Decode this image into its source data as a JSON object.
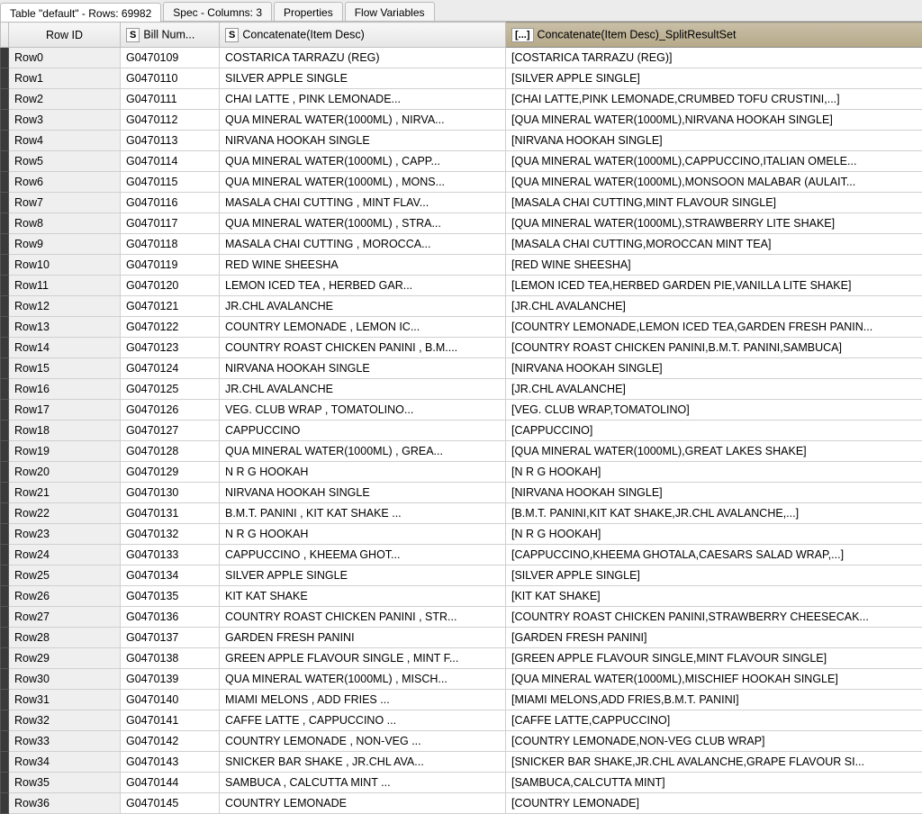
{
  "tabs": {
    "main": "Table \"default\" - Rows: 69982",
    "spec": "Spec - Columns: 3",
    "props": "Properties",
    "flow": "Flow Variables"
  },
  "headers": {
    "rowid": "Row ID",
    "bill": {
      "type": "S",
      "label": "Bill Num..."
    },
    "desc": {
      "type": "S",
      "label": "Concatenate(Item Desc)"
    },
    "split": {
      "type": "[...]",
      "label": "Concatenate(Item Desc)_SplitResultSet"
    }
  },
  "rows": [
    {
      "id": "Row0",
      "bill": "G0470109",
      "desc": "COSTARICA TARRAZU (REG)",
      "split": "[COSTARICA TARRAZU (REG)]"
    },
    {
      "id": "Row1",
      "bill": "G0470110",
      "desc": "SILVER APPLE SINGLE",
      "split": "[SILVER APPLE SINGLE]"
    },
    {
      "id": "Row2",
      "bill": "G0470111",
      "desc": "CHAI LATTE               , PINK LEMONADE...",
      "split": "[CHAI LATTE,PINK LEMONADE,CRUMBED TOFU CRUSTINI,...]"
    },
    {
      "id": "Row3",
      "bill": "G0470112",
      "desc": "QUA  MINERAL WATER(1000ML)    , NIRVA...",
      "split": "[QUA  MINERAL WATER(1000ML),NIRVANA HOOKAH SINGLE]"
    },
    {
      "id": "Row4",
      "bill": "G0470113",
      "desc": "NIRVANA HOOKAH SINGLE",
      "split": "[NIRVANA HOOKAH SINGLE]"
    },
    {
      "id": "Row5",
      "bill": "G0470114",
      "desc": "QUA  MINERAL WATER(1000ML)    , CAPP...",
      "split": "[QUA  MINERAL WATER(1000ML),CAPPUCCINO,ITALIAN OMELE..."
    },
    {
      "id": "Row6",
      "bill": "G0470115",
      "desc": "QUA  MINERAL WATER(1000ML)    , MONS...",
      "split": "[QUA  MINERAL WATER(1000ML),MONSOON MALABAR (AULAIT..."
    },
    {
      "id": "Row7",
      "bill": "G0470116",
      "desc": "MASALA CHAI CUTTING       , MINT FLAV...",
      "split": "[MASALA CHAI CUTTING,MINT FLAVOUR SINGLE]"
    },
    {
      "id": "Row8",
      "bill": "G0470117",
      "desc": "QUA  MINERAL WATER(1000ML)    , STRA...",
      "split": "[QUA  MINERAL WATER(1000ML),STRAWBERRY LITE SHAKE]"
    },
    {
      "id": "Row9",
      "bill": "G0470118",
      "desc": "MASALA CHAI CUTTING       , MOROCCA...",
      "split": "[MASALA CHAI CUTTING,MOROCCAN MINT TEA]"
    },
    {
      "id": "Row10",
      "bill": "G0470119",
      "desc": "RED WINE SHEESHA",
      "split": "[RED WINE SHEESHA]"
    },
    {
      "id": "Row11",
      "bill": "G0470120",
      "desc": "LEMON ICED TEA           , HERBED GAR...",
      "split": "[LEMON ICED TEA,HERBED GARDEN PIE,VANILLA LITE SHAKE]"
    },
    {
      "id": "Row12",
      "bill": "G0470121",
      "desc": "JR.CHL AVALANCHE",
      "split": "[JR.CHL AVALANCHE]"
    },
    {
      "id": "Row13",
      "bill": "G0470122",
      "desc": "COUNTRY LEMONADE         , LEMON IC...",
      "split": "[COUNTRY LEMONADE,LEMON ICED TEA,GARDEN FRESH PANIN..."
    },
    {
      "id": "Row14",
      "bill": "G0470123",
      "desc": "COUNTRY ROAST CHICKEN PANINI  , B.M....",
      "split": "[COUNTRY ROAST CHICKEN PANINI,B.M.T. PANINI,SAMBUCA]"
    },
    {
      "id": "Row15",
      "bill": "G0470124",
      "desc": "NIRVANA HOOKAH SINGLE",
      "split": "[NIRVANA HOOKAH SINGLE]"
    },
    {
      "id": "Row16",
      "bill": "G0470125",
      "desc": "JR.CHL AVALANCHE",
      "split": "[JR.CHL AVALANCHE]"
    },
    {
      "id": "Row17",
      "bill": "G0470126",
      "desc": "VEG. CLUB WRAP           , TOMATOLINO...",
      "split": "[VEG. CLUB WRAP,TOMATOLINO]"
    },
    {
      "id": "Row18",
      "bill": "G0470127",
      "desc": "CAPPUCCINO",
      "split": "[CAPPUCCINO]"
    },
    {
      "id": "Row19",
      "bill": "G0470128",
      "desc": "QUA  MINERAL WATER(1000ML)    , GREA...",
      "split": "[QUA  MINERAL WATER(1000ML),GREAT LAKES SHAKE]"
    },
    {
      "id": "Row20",
      "bill": "G0470129",
      "desc": "N R G  HOOKAH",
      "split": "[N R G  HOOKAH]"
    },
    {
      "id": "Row21",
      "bill": "G0470130",
      "desc": "NIRVANA HOOKAH SINGLE",
      "split": "[NIRVANA HOOKAH SINGLE]"
    },
    {
      "id": "Row22",
      "bill": "G0470131",
      "desc": "B.M.T. PANINI            , KIT KAT SHAKE  ...",
      "split": "[B.M.T. PANINI,KIT KAT SHAKE,JR.CHL AVALANCHE,...]"
    },
    {
      "id": "Row23",
      "bill": "G0470132",
      "desc": "N R G  HOOKAH",
      "split": "[N R G  HOOKAH]"
    },
    {
      "id": "Row24",
      "bill": "G0470133",
      "desc": "CAPPUCCINO               , KHEEMA GHOT...",
      "split": "[CAPPUCCINO,KHEEMA GHOTALA,CAESARS SALAD WRAP,...]"
    },
    {
      "id": "Row25",
      "bill": "G0470134",
      "desc": "SILVER APPLE SINGLE",
      "split": "[SILVER APPLE SINGLE]"
    },
    {
      "id": "Row26",
      "bill": "G0470135",
      "desc": "KIT KAT SHAKE",
      "split": "[KIT KAT SHAKE]"
    },
    {
      "id": "Row27",
      "bill": "G0470136",
      "desc": "COUNTRY ROAST CHICKEN PANINI  , STR...",
      "split": "[COUNTRY ROAST CHICKEN PANINI,STRAWBERRY CHEESECAK..."
    },
    {
      "id": "Row28",
      "bill": "G0470137",
      "desc": "GARDEN FRESH PANINI",
      "split": "[GARDEN FRESH PANINI]"
    },
    {
      "id": "Row29",
      "bill": "G0470138",
      "desc": "GREEN APPLE FLAVOUR SINGLE    , MINT F...",
      "split": "[GREEN APPLE FLAVOUR SINGLE,MINT FLAVOUR SINGLE]"
    },
    {
      "id": "Row30",
      "bill": "G0470139",
      "desc": "QUA  MINERAL WATER(1000ML)    , MISCH...",
      "split": "[QUA  MINERAL WATER(1000ML),MISCHIEF HOOKAH SINGLE]"
    },
    {
      "id": "Row31",
      "bill": "G0470140",
      "desc": "MIAMI MELONS             , ADD FRIES      ...",
      "split": "[MIAMI MELONS,ADD FRIES,B.M.T. PANINI]"
    },
    {
      "id": "Row32",
      "bill": "G0470141",
      "desc": "CAFFE LATTE              , CAPPUCCINO   ...",
      "split": "[CAFFE LATTE,CAPPUCCINO]"
    },
    {
      "id": "Row33",
      "bill": "G0470142",
      "desc": "COUNTRY LEMONADE         , NON-VEG ...",
      "split": "[COUNTRY LEMONADE,NON-VEG CLUB WRAP]"
    },
    {
      "id": "Row34",
      "bill": "G0470143",
      "desc": "SNICKER BAR SHAKE        , JR.CHL AVA...",
      "split": "[SNICKER BAR SHAKE,JR.CHL AVALANCHE,GRAPE FLAVOUR SI..."
    },
    {
      "id": "Row35",
      "bill": "G0470144",
      "desc": "SAMBUCA                  , CALCUTTA MINT ...",
      "split": "[SAMBUCA,CALCUTTA MINT]"
    },
    {
      "id": "Row36",
      "bill": "G0470145",
      "desc": "COUNTRY LEMONADE",
      "split": "[COUNTRY LEMONADE]"
    }
  ]
}
